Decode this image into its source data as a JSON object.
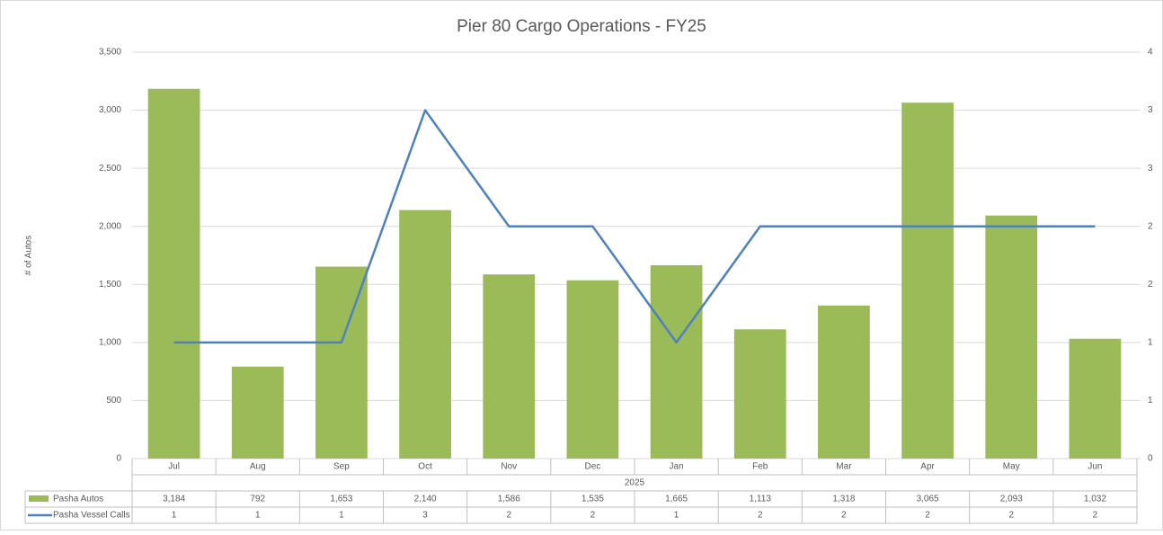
{
  "chart_data": {
    "type": "bar",
    "title": "Pier 80 Cargo Operations - FY25",
    "y_label": "# of Autos",
    "categories": [
      "Jul",
      "Aug",
      "Sep",
      "Oct",
      "Nov",
      "Dec",
      "Jan",
      "Feb",
      "Mar",
      "Apr",
      "May",
      "Jun"
    ],
    "category_group": "2025",
    "series": [
      {
        "name": "Pasha Autos",
        "type": "bar",
        "color": "#9bbb59",
        "values": [
          3184,
          792,
          1653,
          2140,
          1586,
          1535,
          1665,
          1113,
          1318,
          3065,
          2093,
          1032
        ],
        "value_labels": [
          "3,184",
          "792",
          "1,653",
          "2,140",
          "1,586",
          "1,535",
          "1,665",
          "1,113",
          "1,318",
          "3,065",
          "2,093",
          "1,032"
        ]
      },
      {
        "name": "Pasha Vessel Calls",
        "type": "line",
        "axis": "y2",
        "color": "#4f81bd",
        "values": [
          1,
          1,
          1,
          3,
          2,
          2,
          1,
          2,
          2,
          2,
          2,
          2
        ]
      }
    ],
    "ylim": [
      0,
      3500
    ],
    "yticks": [
      0,
      {
        "value": 500,
        "label": "500"
      },
      {
        "value": 1000,
        "label": "1,000"
      },
      {
        "value": 1500,
        "label": "1,500"
      },
      {
        "value": 2000,
        "label": "2,000"
      },
      {
        "value": 2500,
        "label": "2,500"
      },
      {
        "value": 3000,
        "label": "3,000"
      },
      {
        "value": 3500,
        "label": "3,500"
      }
    ],
    "y2lim": [
      0,
      3.5
    ],
    "y2ticks": [
      0,
      {
        "value": 0.5,
        "label": "1"
      },
      1,
      {
        "value": 1.5,
        "label": "2"
      },
      2,
      {
        "value": 2.5,
        "label": "3"
      },
      3,
      {
        "value": 3.5,
        "label": "4"
      }
    ],
    "grid": true
  }
}
